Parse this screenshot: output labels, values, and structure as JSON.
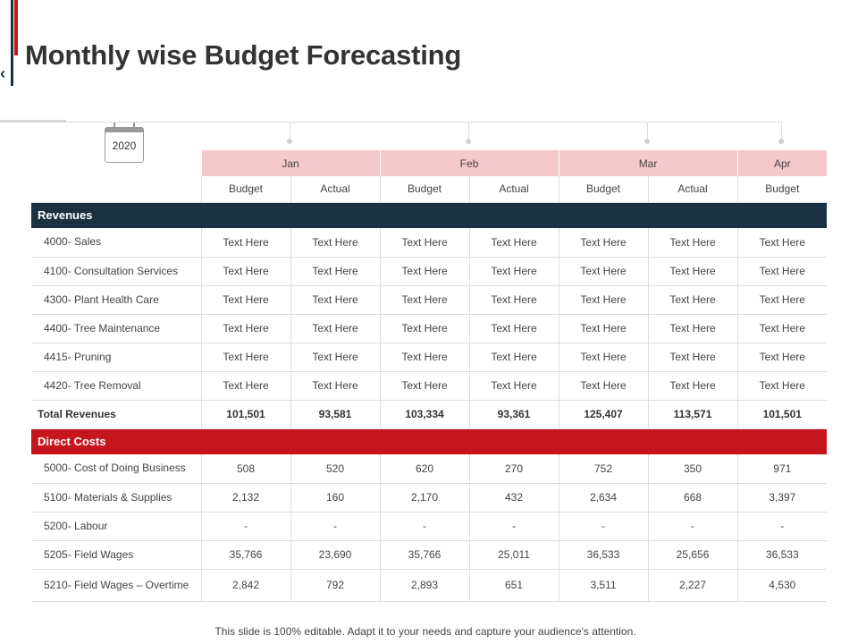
{
  "title": "Monthly wise Budget Forecasting",
  "nav": {
    "back_icon": "chevron-left-icon"
  },
  "calendar": {
    "year": "2020",
    "icon": "calendar-icon"
  },
  "months": [
    "Jan",
    "Feb",
    "Mar",
    "Apr"
  ],
  "column_headers": [
    "Budget",
    "Actual",
    "Budget",
    "Actual",
    "Budget",
    "Actual",
    "Budget"
  ],
  "sections": {
    "revenues": "Revenues",
    "direct_costs": "Direct Costs"
  },
  "revenue_rows": [
    {
      "label": "4000- Sales",
      "values": [
        "Text Here",
        "Text Here",
        "Text Here",
        "Text Here",
        "Text Here",
        "Text Here",
        "Text Here"
      ]
    },
    {
      "label": "4100- Consultation Services",
      "values": [
        "Text Here",
        "Text Here",
        "Text Here",
        "Text Here",
        "Text Here",
        "Text Here",
        "Text Here"
      ]
    },
    {
      "label": "4300- Plant Health Care",
      "values": [
        "Text Here",
        "Text Here",
        "Text Here",
        "Text Here",
        "Text Here",
        "Text Here",
        "Text Here"
      ]
    },
    {
      "label": "4400- Tree Maintenance",
      "values": [
        "Text Here",
        "Text Here",
        "Text Here",
        "Text Here",
        "Text Here",
        "Text Here",
        "Text Here"
      ]
    },
    {
      "label": "4415- Pruning",
      "values": [
        "Text Here",
        "Text Here",
        "Text Here",
        "Text Here",
        "Text Here",
        "Text Here",
        "Text Here"
      ]
    },
    {
      "label": "4420- Tree Removal",
      "values": [
        "Text Here",
        "Text Here",
        "Text Here",
        "Text Here",
        "Text Here",
        "Text Here",
        "Text Here"
      ]
    }
  ],
  "total_revenues": {
    "label": "Total Revenues",
    "values": [
      "101,501",
      "93,581",
      "103,334",
      "93,361",
      "125,407",
      "113,571",
      "101,501"
    ]
  },
  "cost_rows": [
    {
      "label": "5000- Cost of Doing Business",
      "values": [
        "508",
        "520",
        "620",
        "270",
        "752",
        "350",
        "971"
      ]
    },
    {
      "label": "5100- Materials & Supplies",
      "values": [
        "2,132",
        "160",
        "2,170",
        "432",
        "2,634",
        "668",
        "3,397"
      ]
    },
    {
      "label": "5200- Labour",
      "values": [
        "-",
        "-",
        "-",
        "-",
        "-",
        "-",
        "-"
      ]
    },
    {
      "label": "5205- Field Wages",
      "values": [
        "35,766",
        "23,690",
        "35,766",
        "25,011",
        "36,533",
        "25,656",
        "36,533"
      ]
    },
    {
      "label": "5210- Field Wages – Overtime",
      "values": [
        "2,842",
        "792",
        "2,893",
        "651",
        "3,511",
        "2,227",
        "4,530"
      ]
    }
  ],
  "footer": "This slide is 100% editable. Adapt it to your needs and capture your audience's attention.",
  "colors": {
    "navy": "#1a3142",
    "red": "#c4161c",
    "pink": "#f5c8cc",
    "grid": "#dddddd"
  }
}
